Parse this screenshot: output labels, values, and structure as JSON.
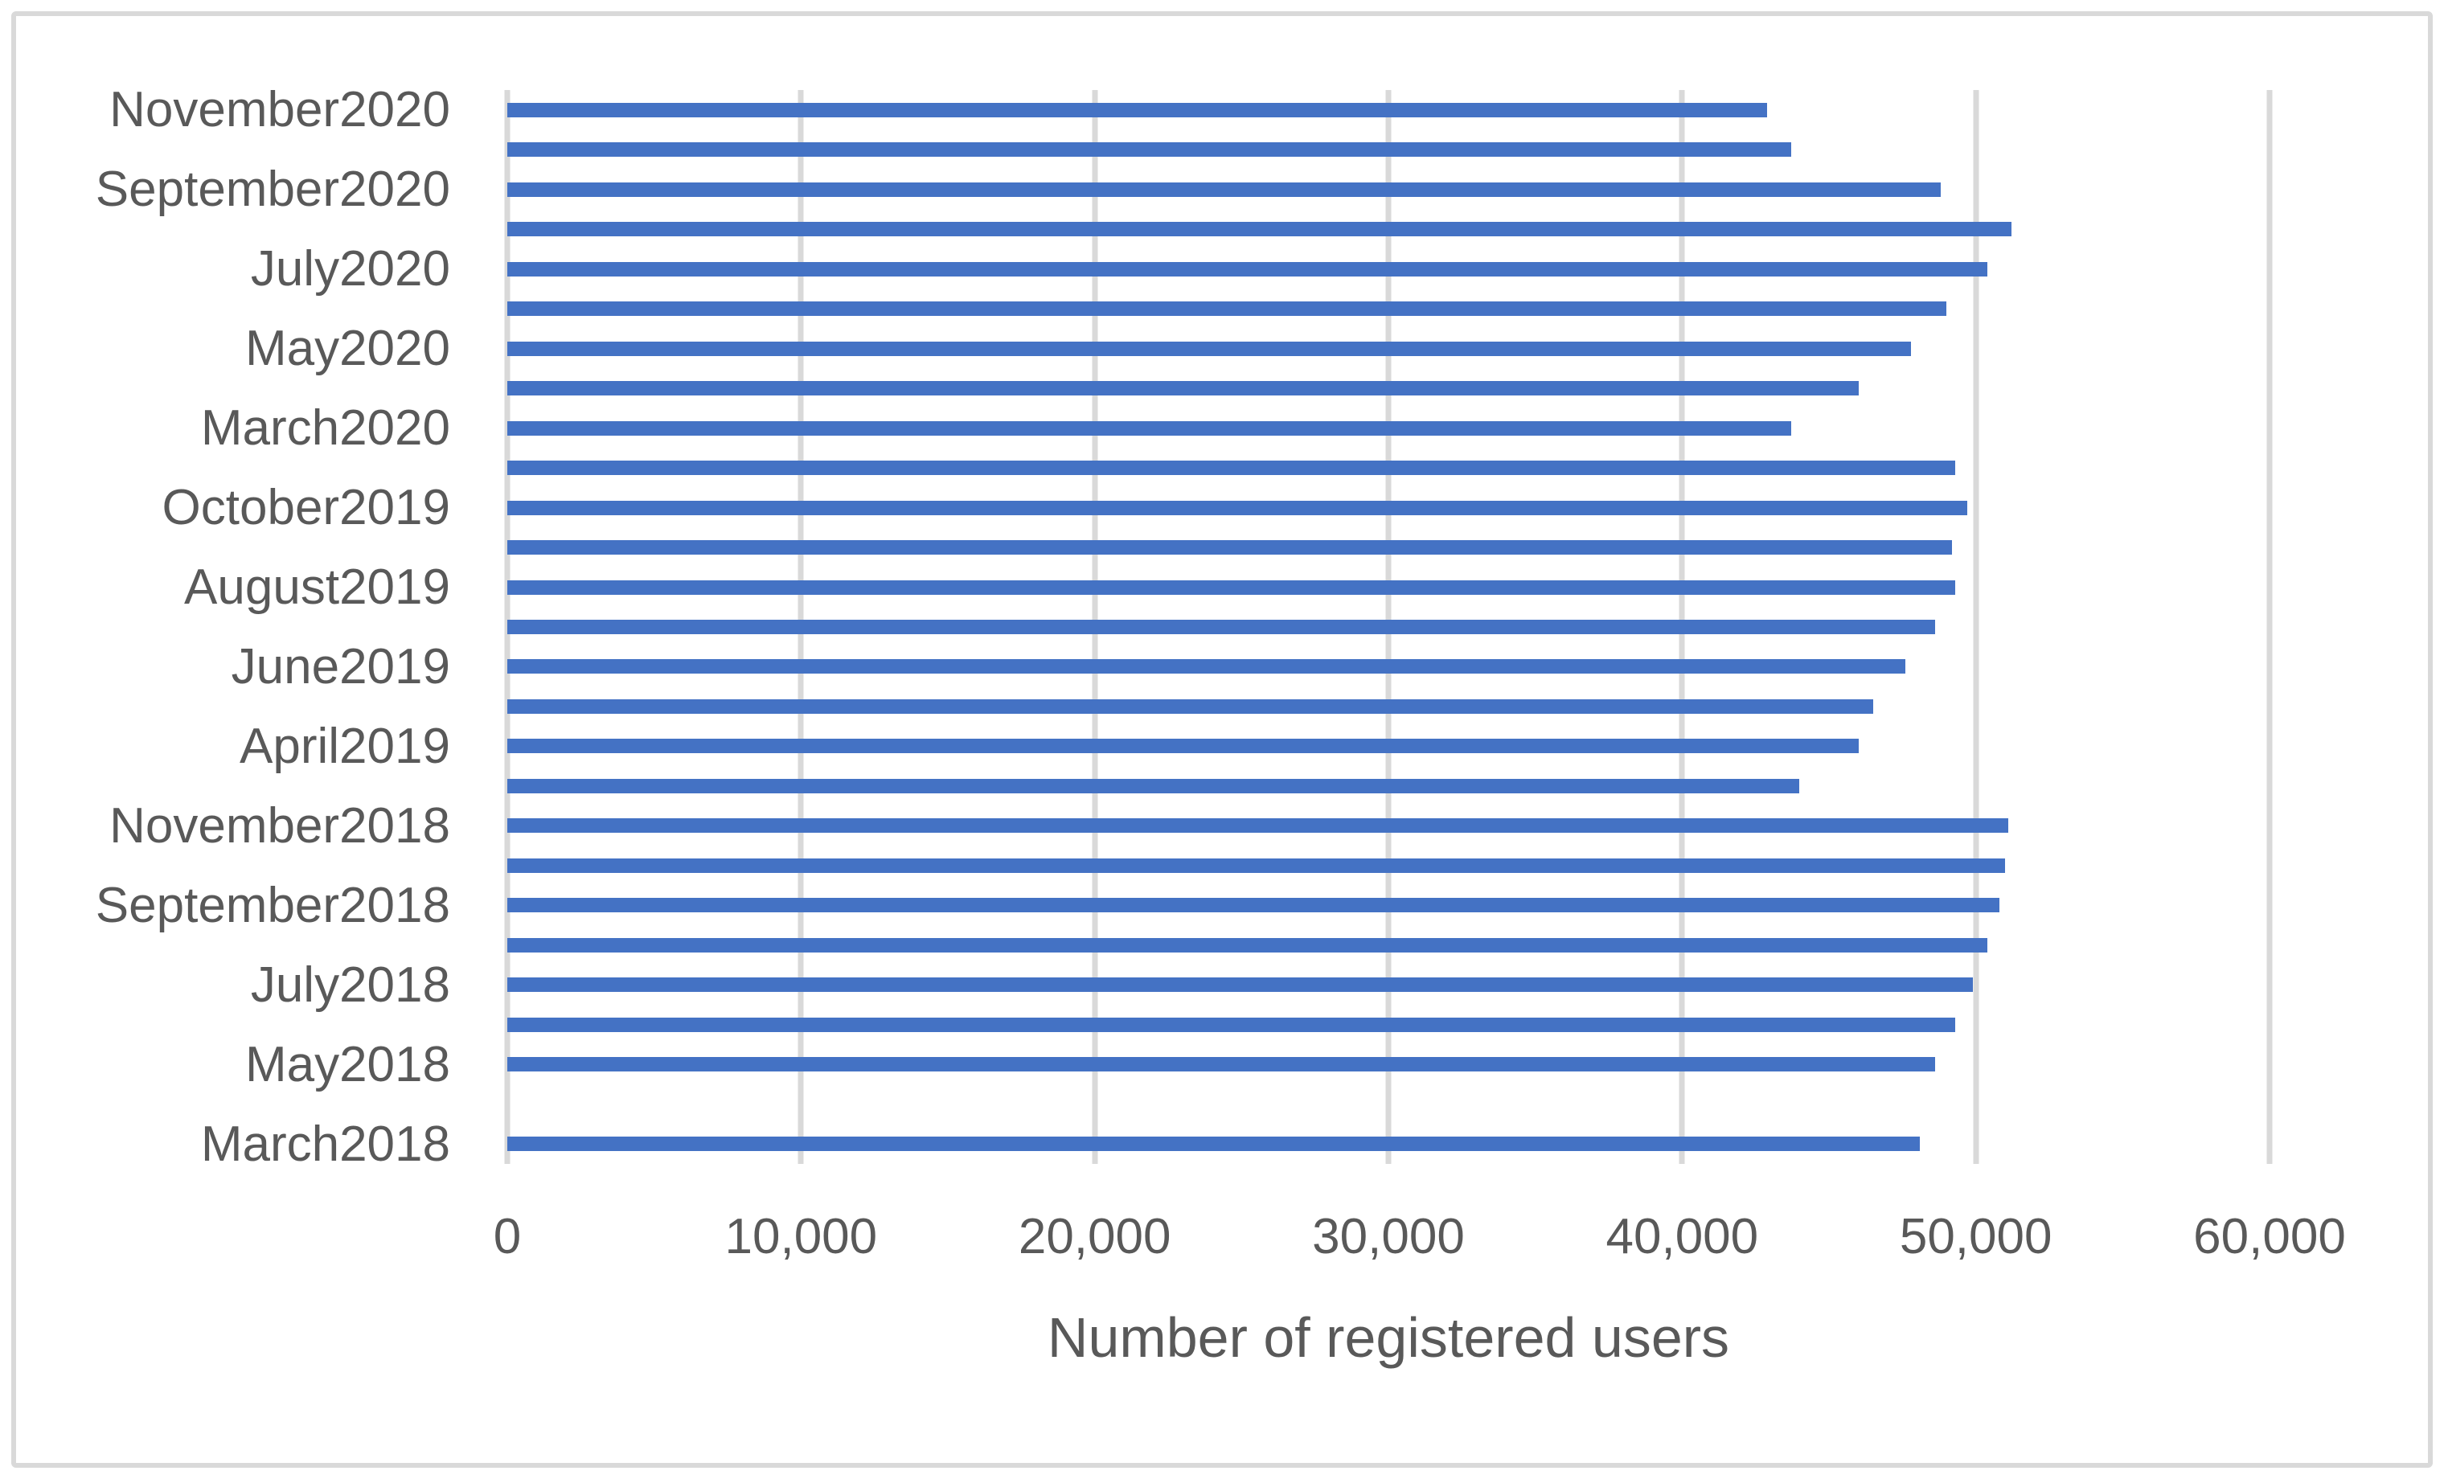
{
  "chart_data": {
    "type": "bar",
    "orientation": "horizontal",
    "title": "",
    "xlabel": "Number of registered users",
    "ylabel": "",
    "xlim": [
      0,
      60000
    ],
    "x_tick_values": [
      0,
      10000,
      20000,
      30000,
      40000,
      50000,
      60000
    ],
    "x_ticks": [
      "0",
      "10,000",
      "20,000",
      "30,000",
      "40,000",
      "50,000",
      "60,000"
    ],
    "grid": "vertical",
    "legend": false,
    "colors": {
      "bar": "#4472C4",
      "gridline": "#D9D9D9",
      "text": "#595959",
      "frame_border": "#D9D9D9",
      "background": "#FFFFFF"
    },
    "rows": [
      {
        "label": "November2020",
        "value": 42900
      },
      {
        "label": "",
        "value": 43700
      },
      {
        "label": "September2020",
        "value": 48800
      },
      {
        "label": "",
        "value": 51200
      },
      {
        "label": "July2020",
        "value": 50400
      },
      {
        "label": "",
        "value": 49000
      },
      {
        "label": "May2020",
        "value": 47800
      },
      {
        "label": "",
        "value": 46000
      },
      {
        "label": "March2020",
        "value": 43700
      },
      {
        "label": "",
        "value": 49300
      },
      {
        "label": "October2019",
        "value": 49700
      },
      {
        "label": "",
        "value": 49200
      },
      {
        "label": "August2019",
        "value": 49300
      },
      {
        "label": "",
        "value": 48600
      },
      {
        "label": "June2019",
        "value": 47600
      },
      {
        "label": "",
        "value": 46500
      },
      {
        "label": "April2019",
        "value": 46000
      },
      {
        "label": "",
        "value": 44000
      },
      {
        "label": "November2018",
        "value": 51100
      },
      {
        "label": "",
        "value": 51000
      },
      {
        "label": "September2018",
        "value": 50800
      },
      {
        "label": "",
        "value": 50400
      },
      {
        "label": "July2018",
        "value": 49900
      },
      {
        "label": "",
        "value": 49300
      },
      {
        "label": "May2018",
        "value": 48600
      },
      {
        "label": "",
        "value": null
      },
      {
        "label": "March2018",
        "value": 48100
      }
    ]
  }
}
